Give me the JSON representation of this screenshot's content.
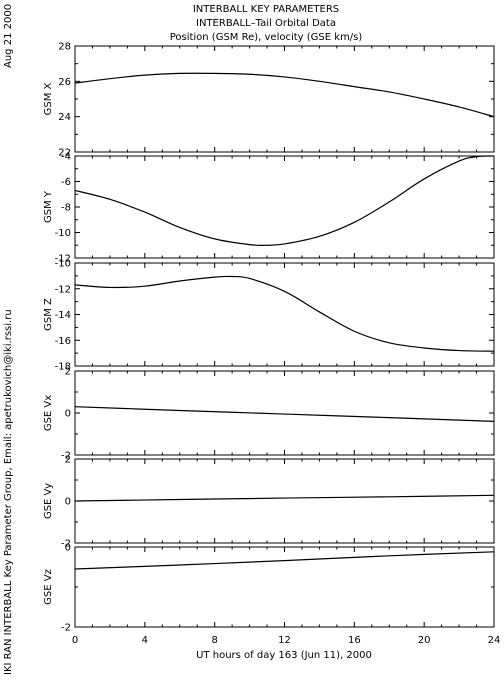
{
  "header": {
    "title_lines": [
      "INTERBALL KEY PARAMETERS",
      "INTERBALL–Tail Orbital Data",
      "Position (GSM Re), velocity (GSE km/s)"
    ]
  },
  "side_labels": {
    "date": "Aug 21 2000",
    "credit": "IKI RAN INTERBALL Key Parameter Group, Email: apetrukovich@iki.rssi.ru"
  },
  "chart_data": {
    "type": "line",
    "x_axis": {
      "label": "UT hours of day 163 (Jun 11), 2000",
      "range": [
        0,
        24
      ],
      "ticks": [
        0,
        4,
        8,
        12,
        16,
        20,
        24
      ]
    },
    "panels": [
      {
        "ylabel": "GSM X",
        "ylim": [
          22,
          28
        ],
        "yticks": [
          22,
          24,
          26,
          28
        ],
        "x": [
          0,
          2,
          4,
          6,
          8,
          10,
          12,
          14,
          16,
          18,
          20,
          22,
          24
        ],
        "y": [
          25.9,
          26.15,
          26.35,
          26.45,
          26.45,
          26.4,
          26.25,
          26.0,
          25.7,
          25.4,
          25.0,
          24.55,
          24.0
        ]
      },
      {
        "ylabel": "GSM Y",
        "ylim": [
          -12,
          -4
        ],
        "yticks": [
          -12,
          -10,
          -8,
          -6,
          -4
        ],
        "x": [
          0,
          2,
          4,
          6,
          8,
          10,
          11,
          12,
          14,
          16,
          18,
          20,
          22,
          23,
          24
        ],
        "y": [
          -6.7,
          -7.4,
          -8.4,
          -9.6,
          -10.5,
          -10.95,
          -11.0,
          -10.9,
          -10.3,
          -9.2,
          -7.6,
          -5.8,
          -4.4,
          -4.05,
          -4.0
        ]
      },
      {
        "ylabel": "GSM Z",
        "ylim": [
          -18,
          -10
        ],
        "yticks": [
          -18,
          -16,
          -14,
          -12,
          -10
        ],
        "x": [
          0,
          2,
          4,
          6,
          8,
          9,
          10,
          12,
          14,
          16,
          18,
          20,
          22,
          24
        ],
        "y": [
          -11.7,
          -11.9,
          -11.8,
          -11.4,
          -11.1,
          -11.05,
          -11.2,
          -12.2,
          -13.8,
          -15.3,
          -16.2,
          -16.6,
          -16.8,
          -16.85
        ]
      },
      {
        "ylabel": "GSE Vx",
        "ylim": [
          -2,
          2
        ],
        "yticks": [
          -2,
          0,
          2
        ],
        "x": [
          0,
          6,
          12,
          18,
          24
        ],
        "y": [
          0.3,
          0.12,
          -0.05,
          -0.22,
          -0.4
        ]
      },
      {
        "ylabel": "GSE Vy",
        "ylim": [
          -2,
          2
        ],
        "yticks": [
          -2,
          0,
          2
        ],
        "x": [
          0,
          6,
          12,
          18,
          24
        ],
        "y": [
          0.0,
          0.07,
          0.14,
          0.2,
          0.27
        ]
      },
      {
        "ylabel": "GSE Vz",
        "ylim": [
          -2,
          0
        ],
        "yticks": [
          -2,
          0
        ],
        "x": [
          0,
          6,
          12,
          18,
          24
        ],
        "y": [
          -0.55,
          -0.45,
          -0.34,
          -0.22,
          -0.12
        ]
      }
    ]
  }
}
